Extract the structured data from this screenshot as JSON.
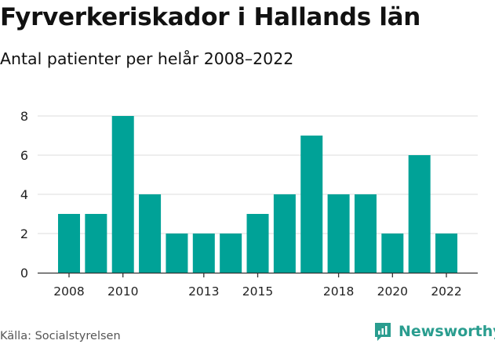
{
  "header": {
    "title": "Fyrverkeriskador i Hallands län",
    "subtitle": "Antal patienter per helår 2008–2022"
  },
  "footer": {
    "source": "Källa: Socialstyrelsen",
    "brand": "Newsworthy"
  },
  "colors": {
    "bar": "#00a297",
    "grid": "#dddddd",
    "axis": "#333333",
    "brand": "#2a9d8f"
  },
  "chart_data": {
    "type": "bar",
    "categories": [
      2008,
      2009,
      2010,
      2011,
      2012,
      2013,
      2014,
      2015,
      2016,
      2017,
      2018,
      2019,
      2020,
      2021,
      2022
    ],
    "values": [
      3,
      3,
      8,
      4,
      2,
      2,
      2,
      3,
      4,
      7,
      4,
      4,
      2,
      6,
      2
    ],
    "x_tick_labels": [
      "2008",
      "2010",
      "2013",
      "2015",
      "2018",
      "2020",
      "2022"
    ],
    "y_ticks": [
      0,
      2,
      4,
      6,
      8
    ],
    "ylim": [
      0,
      8
    ],
    "grid": true,
    "legend": "none"
  }
}
